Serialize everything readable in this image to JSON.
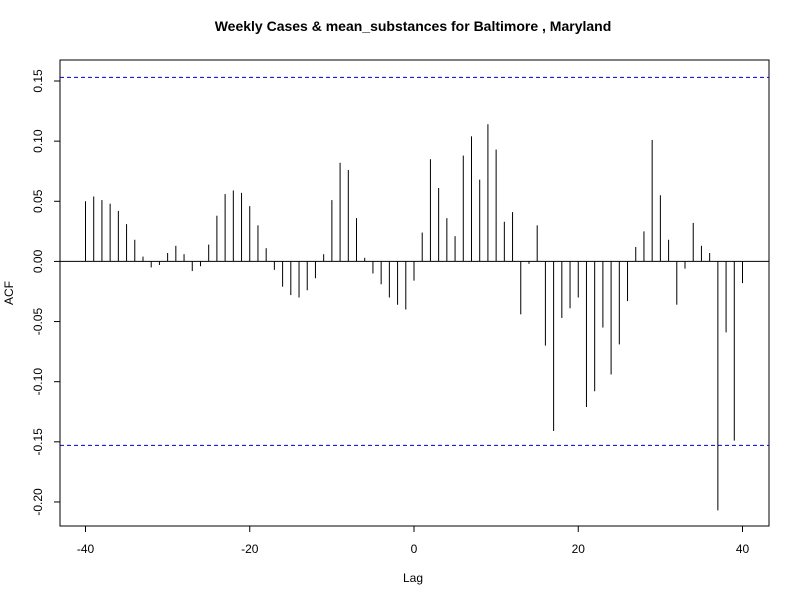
{
  "chart_data": {
    "type": "bar",
    "title": "Weekly Cases & mean_substances for Baltimore , Maryland",
    "xlabel": "Lag",
    "ylabel": "ACF",
    "xlim": [
      -40,
      40
    ],
    "ylim": [
      -0.21,
      0.165
    ],
    "x_ticks": [
      -40,
      -20,
      0,
      20,
      40
    ],
    "x_tick_labels": [
      "-40",
      "-20",
      "0",
      "20",
      "40"
    ],
    "y_ticks": [
      -0.2,
      -0.15,
      -0.1,
      -0.05,
      0.0,
      0.05,
      0.1,
      0.15
    ],
    "y_tick_labels": [
      "-0.20",
      "-0.15",
      "-0.10",
      "-0.05",
      "0.00",
      "0.05",
      "0.10",
      "0.15"
    ],
    "confidence_bounds": [
      0.153,
      -0.153
    ],
    "confidence_line_color": "#0000cc",
    "bar_color": "#000000",
    "grid": false,
    "lags": [
      -40,
      -39,
      -38,
      -37,
      -36,
      -35,
      -34,
      -33,
      -32,
      -31,
      -30,
      -29,
      -28,
      -27,
      -26,
      -25,
      -24,
      -23,
      -22,
      -21,
      -20,
      -19,
      -18,
      -17,
      -16,
      -15,
      -14,
      -13,
      -12,
      -11,
      -10,
      -9,
      -8,
      -7,
      -6,
      -5,
      -4,
      -3,
      -2,
      -1,
      0,
      1,
      2,
      3,
      4,
      5,
      6,
      7,
      8,
      9,
      10,
      11,
      12,
      13,
      14,
      15,
      16,
      17,
      18,
      19,
      20,
      21,
      22,
      23,
      24,
      25,
      26,
      27,
      28,
      29,
      30,
      31,
      32,
      33,
      34,
      35,
      36,
      37,
      38,
      39,
      40
    ],
    "values": [
      0.05,
      0.054,
      0.051,
      0.048,
      0.042,
      0.031,
      0.018,
      0.004,
      -0.005,
      -0.003,
      0.007,
      0.013,
      0.006,
      -0.008,
      -0.004,
      0.014,
      0.038,
      0.056,
      0.059,
      0.057,
      0.046,
      0.03,
      0.011,
      -0.007,
      -0.021,
      -0.028,
      -0.03,
      -0.024,
      -0.014,
      0.006,
      0.051,
      0.082,
      0.076,
      0.036,
      0.003,
      -0.01,
      -0.019,
      -0.03,
      -0.036,
      -0.04,
      -0.016,
      0.024,
      0.085,
      0.061,
      0.036,
      0.021,
      0.088,
      0.104,
      0.068,
      0.114,
      0.093,
      0.033,
      0.041,
      -0.044,
      -0.002,
      0.03,
      -0.07,
      -0.141,
      -0.047,
      -0.039,
      -0.03,
      -0.121,
      -0.108,
      -0.055,
      -0.094,
      -0.069,
      -0.033,
      0.012,
      0.025,
      0.101,
      0.055,
      0.018,
      -0.036,
      -0.006,
      0.032,
      0.013,
      0.007,
      -0.207,
      -0.059,
      -0.149,
      -0.018
    ]
  }
}
